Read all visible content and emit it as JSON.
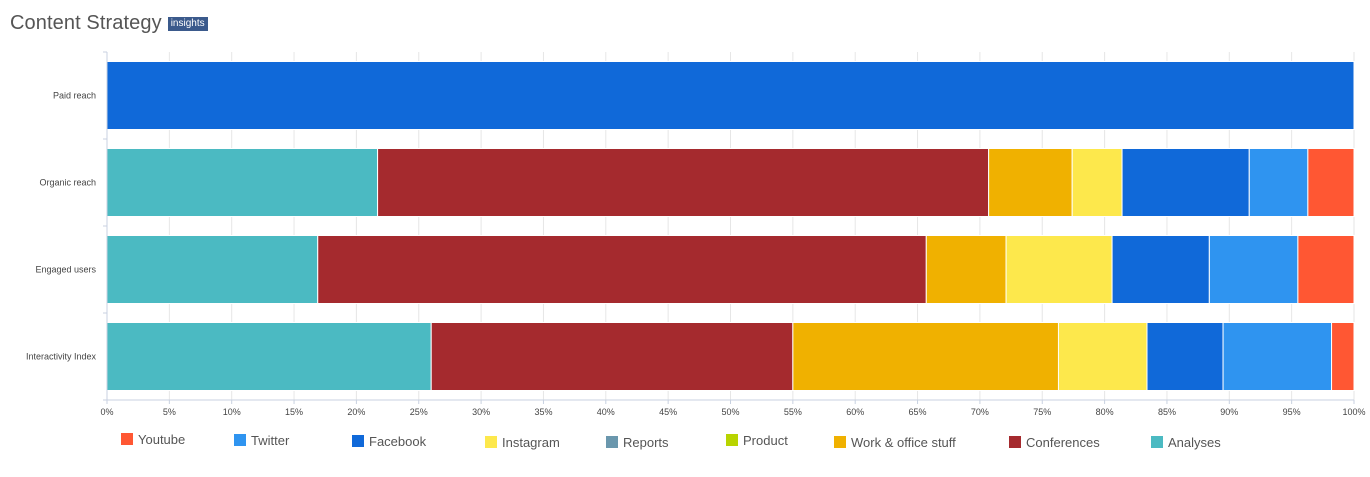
{
  "header": {
    "title": "Content Strategy",
    "badge": "insights"
  },
  "chart_data": {
    "type": "bar",
    "orientation": "horizontal",
    "stacked": "percent",
    "categories": [
      "Paid reach",
      "Organic reach",
      "Engaged users",
      "Interactivity Index"
    ],
    "xlim": [
      0,
      100
    ],
    "xticks": [
      "0%",
      "5%",
      "10%",
      "15%",
      "20%",
      "25%",
      "30%",
      "35%",
      "40%",
      "45%",
      "50%",
      "55%",
      "60%",
      "65%",
      "70%",
      "75%",
      "80%",
      "85%",
      "90%",
      "95%",
      "100%"
    ],
    "series": [
      {
        "name": "Analyses",
        "color": "#4bbac2",
        "values": [
          0,
          21.7,
          16.9,
          26.0
        ]
      },
      {
        "name": "Conferences",
        "color": "#a52a2e",
        "values": [
          0,
          49.0,
          48.8,
          29.0
        ]
      },
      {
        "name": "Work & office stuff",
        "color": "#f0b100",
        "values": [
          0,
          6.7,
          6.4,
          21.3
        ]
      },
      {
        "name": "Instagram",
        "color": "#fde84c",
        "values": [
          0,
          4.0,
          8.5,
          7.1
        ]
      },
      {
        "name": "Reports",
        "color": "#6a97ad",
        "values": [
          0,
          0,
          0,
          0
        ]
      },
      {
        "name": "Product",
        "color": "#b8d400",
        "values": [
          0,
          0,
          0,
          0
        ]
      },
      {
        "name": "Facebook",
        "color": "#1069d9",
        "values": [
          100,
          10.2,
          7.8,
          6.1
        ]
      },
      {
        "name": "Twitter",
        "color": "#2f94f0",
        "values": [
          0,
          4.7,
          7.1,
          8.7
        ]
      },
      {
        "name": "Youtube",
        "color": "#ff5733",
        "values": [
          0,
          3.7,
          4.5,
          1.8
        ]
      }
    ],
    "legend": {
      "placement": "bottom",
      "items": [
        {
          "name": "Youtube",
          "color": "#ff5733"
        },
        {
          "name": "Twitter",
          "color": "#2f94f0"
        },
        {
          "name": "Facebook",
          "color": "#1069d9"
        },
        {
          "name": "Instagram",
          "color": "#fde84c"
        },
        {
          "name": "Reports",
          "color": "#6a97ad"
        },
        {
          "name": "Product",
          "color": "#b8d400"
        },
        {
          "name": "Work & office stuff",
          "color": "#f0b100"
        },
        {
          "name": "Conferences",
          "color": "#a52a2e"
        },
        {
          "name": "Analyses",
          "color": "#4bbac2"
        }
      ]
    },
    "grid": true
  }
}
